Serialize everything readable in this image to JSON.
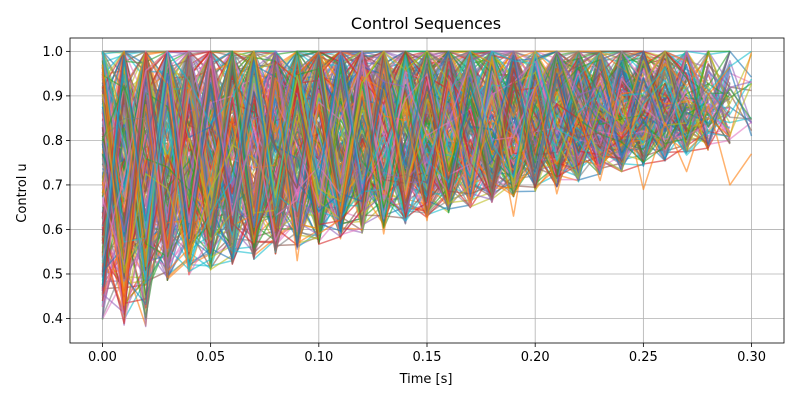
{
  "chart_data": {
    "type": "line",
    "title": "Control Sequences",
    "xlabel": "Time [s]",
    "ylabel": "Control u",
    "xlim": [
      -0.015,
      0.315
    ],
    "ylim": [
      0.345,
      1.03
    ],
    "grid": true,
    "xticks": [
      0.0,
      0.05,
      0.1,
      0.15,
      0.2,
      0.25,
      0.3
    ],
    "xtick_labels": [
      "0.00",
      "0.05",
      "0.10",
      "0.15",
      "0.20",
      "0.25",
      "0.30"
    ],
    "yticks": [
      0.4,
      0.5,
      0.6,
      0.7,
      0.8,
      0.9,
      1.0
    ],
    "ytick_labels": [
      "0.4",
      "0.5",
      "0.6",
      "0.7",
      "0.8",
      "0.9",
      "1.0"
    ],
    "time_step": 0.01,
    "series_count": 320,
    "colors": [
      "#1f77b4",
      "#ff7f0e",
      "#2ca02c",
      "#d62728",
      "#9467bd",
      "#8c564b",
      "#e377c2",
      "#7f7f7f",
      "#bcbd22",
      "#17becf"
    ],
    "value_range": [
      0.38,
      1.0
    ],
    "max_duration": 0.3,
    "series": [
      {
        "x": [
          0.0,
          0.01,
          0.02,
          0.03,
          0.04,
          0.05,
          0.06,
          0.07,
          0.08,
          0.09,
          0.1,
          0.11,
          0.12,
          0.13,
          0.14,
          0.15,
          0.16,
          0.17,
          0.18,
          0.19,
          0.2,
          0.21,
          0.22,
          0.23,
          0.24,
          0.25,
          0.26,
          0.27,
          0.28,
          0.29,
          0.3
        ],
        "y": [
          0.47,
          0.99,
          0.62,
          0.95,
          0.58,
          0.91,
          0.66,
          0.98,
          0.63,
          0.89,
          0.71,
          0.99,
          0.68,
          0.93,
          0.74,
          0.97,
          0.69,
          0.92,
          0.78,
          0.99,
          0.73,
          0.95,
          0.8,
          0.98,
          0.76,
          0.94,
          0.82,
          0.97,
          0.79,
          0.96,
          0.81
        ]
      },
      {
        "x": [
          0.0,
          0.01,
          0.02,
          0.03,
          0.04,
          0.05,
          0.06,
          0.07,
          0.08,
          0.09,
          0.1,
          0.11,
          0.12,
          0.13,
          0.14,
          0.15,
          0.16,
          0.17,
          0.18,
          0.19,
          0.2,
          0.21,
          0.22,
          0.23,
          0.24,
          0.25,
          0.26,
          0.27,
          0.28,
          0.29,
          0.3
        ],
        "y": [
          0.97,
          0.43,
          0.88,
          0.55,
          0.92,
          0.61,
          0.85,
          0.57,
          0.94,
          0.53,
          0.88,
          0.64,
          0.91,
          0.59,
          0.87,
          0.62,
          0.93,
          0.66,
          0.89,
          0.63,
          0.92,
          0.68,
          0.86,
          0.71,
          0.9,
          0.69,
          0.84,
          0.73,
          0.88,
          0.7,
          0.77
        ]
      }
    ]
  }
}
